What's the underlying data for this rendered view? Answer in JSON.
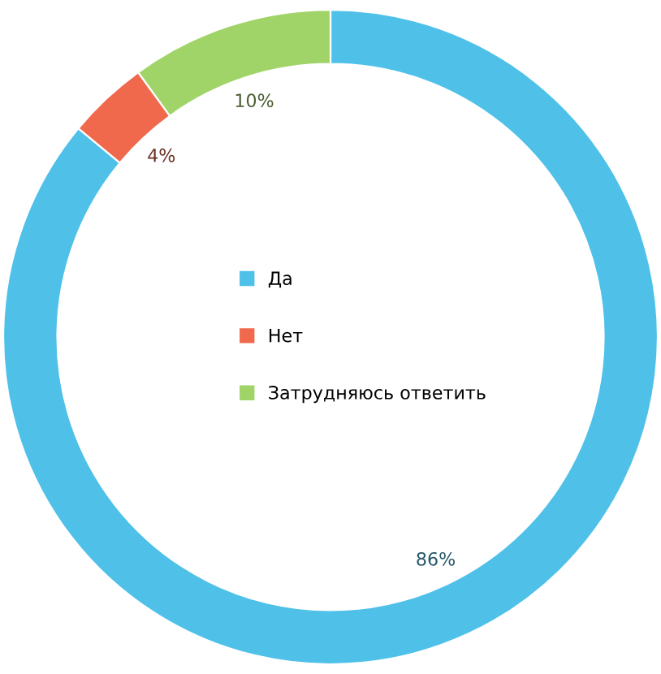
{
  "chart_data": {
    "type": "donut",
    "categories": [
      "Да",
      "Нет",
      "Затрудняюсь ответить"
    ],
    "values": [
      86,
      4,
      10
    ],
    "colors": [
      "#4fc1e9",
      "#f0694c",
      "#a0d468"
    ],
    "value_labels": [
      "86%",
      "4%",
      "10%"
    ],
    "legend": "center"
  }
}
